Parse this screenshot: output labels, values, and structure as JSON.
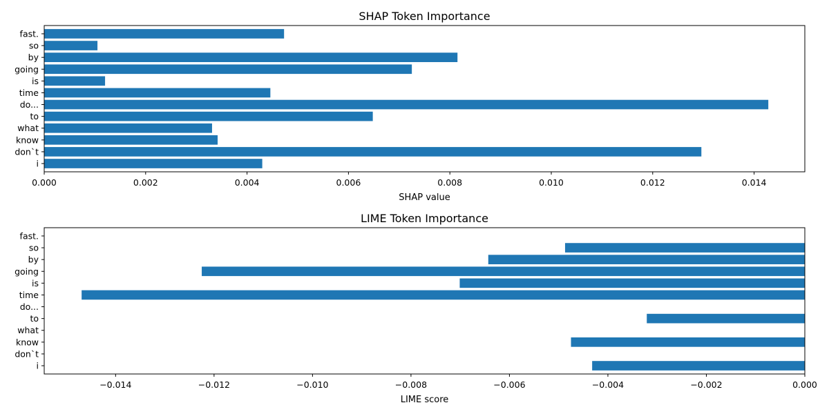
{
  "chart_data": [
    {
      "type": "bar",
      "orientation": "horizontal",
      "title": "SHAP Token Importance",
      "xlabel": "SHAP value",
      "ylabel": "",
      "categories": [
        "i",
        "don`t",
        "know",
        "what",
        "to",
        "do...",
        "time",
        "is",
        "going",
        "by",
        "so",
        "fast."
      ],
      "values": [
        0.0043,
        0.01296,
        0.00342,
        0.00331,
        0.00648,
        0.01428,
        0.00446,
        0.0012,
        0.00725,
        0.00815,
        0.00105,
        0.00473
      ],
      "xlim": [
        0,
        0.015
      ],
      "xticks": [
        0.0,
        0.002,
        0.004,
        0.006,
        0.008,
        0.01,
        0.012,
        0.014
      ],
      "xtick_labels": [
        "0.000",
        "0.002",
        "0.004",
        "0.006",
        "0.008",
        "0.010",
        "0.012",
        "0.014"
      ],
      "bar_color": "#1f77b4",
      "grid": false
    },
    {
      "type": "bar",
      "orientation": "horizontal",
      "title": "LIME Token Importance",
      "xlabel": "LIME score",
      "ylabel": "",
      "categories": [
        "i",
        "don`t",
        "know",
        "what",
        "to",
        "do...",
        "time",
        "is",
        "going",
        "by",
        "so",
        "fast."
      ],
      "values": [
        -0.00432,
        0,
        -0.00475,
        0,
        -0.00321,
        0,
        -0.01469,
        -0.00701,
        -0.01225,
        -0.00643,
        -0.00487,
        0
      ],
      "xlim": [
        -0.01545,
        0
      ],
      "xticks": [
        -0.014,
        -0.012,
        -0.01,
        -0.008,
        -0.006,
        -0.004,
        -0.002,
        0.0
      ],
      "xtick_labels": [
        "−0.014",
        "−0.012",
        "−0.010",
        "−0.008",
        "−0.006",
        "−0.004",
        "−0.002",
        "0.000"
      ],
      "bar_color": "#1f77b4",
      "grid": false
    }
  ]
}
